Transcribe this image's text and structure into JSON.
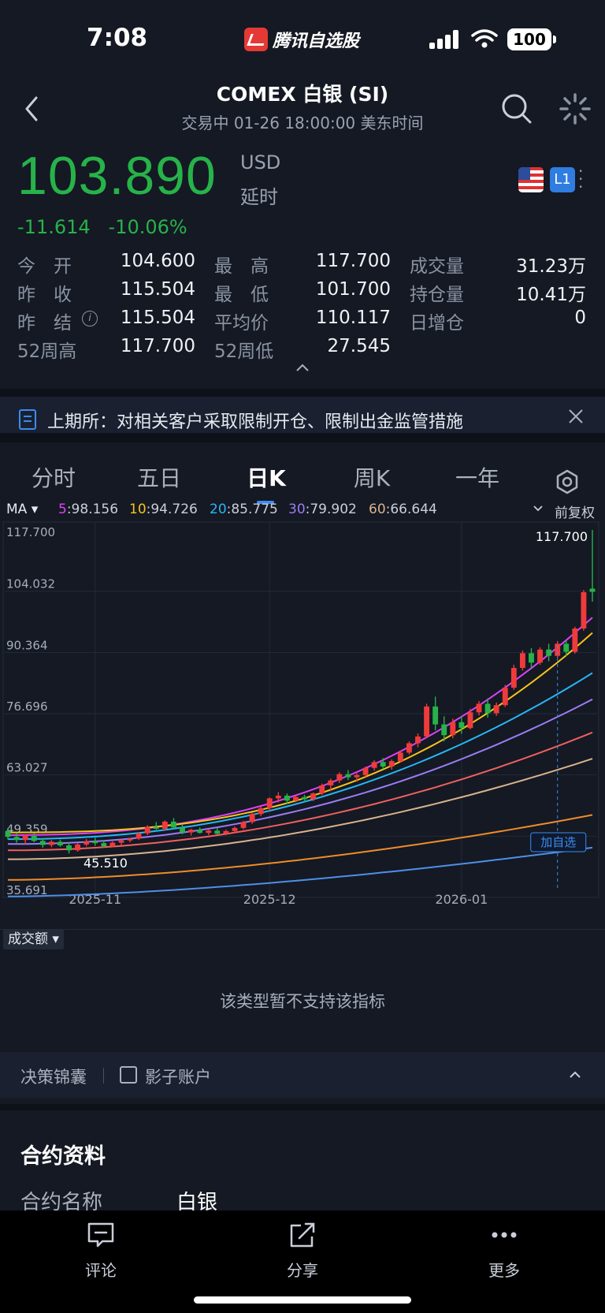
{
  "status_bar": {
    "time": "7:08",
    "app_name": "腾讯自选股",
    "battery": "100"
  },
  "header": {
    "title": "COMEX 白银 (SI)",
    "subtitle": "交易中   01-26 18:00:00 美东时间"
  },
  "quote": {
    "price": "103.890",
    "currency": "USD",
    "delay_label": "延时",
    "change": "-11.614",
    "change_pct": "-10.06%",
    "market_badge": "L1"
  },
  "stats": [
    {
      "label": "今　开",
      "value": "104.600",
      "tone": "down"
    },
    {
      "label": "最　高",
      "value": "117.700",
      "tone": "up"
    },
    {
      "label": "成交量",
      "value": "31.23万",
      "tone": ""
    },
    {
      "label": "昨　收",
      "value": "115.504",
      "tone": ""
    },
    {
      "label": "最　低",
      "value": "101.700",
      "tone": "down"
    },
    {
      "label": "持仓量",
      "value": "10.41万",
      "tone": ""
    },
    {
      "label": "昨　结",
      "value": "115.504",
      "tone": ""
    },
    {
      "label": "平均价",
      "value": "110.117",
      "tone": ""
    },
    {
      "label": "日增仓",
      "value": "0",
      "tone": ""
    },
    {
      "label": "52周高",
      "value": "117.700",
      "tone": ""
    },
    {
      "label": "52周低",
      "value": "27.545",
      "tone": ""
    }
  ],
  "notice": {
    "text": "上期所：对相关客户采取限制开仓、限制出金监管措施"
  },
  "tabs": [
    "分时",
    "五日",
    "日K",
    "周K",
    "一年"
  ],
  "active_tab": "日K",
  "ma_bar": {
    "selector": "MA",
    "items": [
      {
        "label": "5",
        "value": ":98.156",
        "color": "#e040fb"
      },
      {
        "label": "10",
        "value": ":94.726",
        "color": "#f5c518"
      },
      {
        "label": "20",
        "value": ":85.775",
        "color": "#29b6f6"
      },
      {
        "label": "30",
        "value": ":79.902",
        "color": "#9c7cf4"
      },
      {
        "label": "60",
        "value": ":66.644",
        "color": "#d9b38c"
      }
    ],
    "adjust_label": "前复权"
  },
  "chart_data": {
    "type": "candlestick",
    "y_ticks": [
      "117.700",
      "104.032",
      "90.364",
      "76.696",
      "63.027",
      "49.359",
      "35.691"
    ],
    "ylim": [
      35.691,
      117.7
    ],
    "x_ticks": [
      {
        "label": "2025-11",
        "index": 10
      },
      {
        "label": "2025-12",
        "index": 30
      },
      {
        "label": "2026-01",
        "index": 52
      }
    ],
    "max_label": "117.700",
    "min_label": "45.510",
    "add_watch_label": "加自选",
    "candles": [
      [
        50.5,
        51.2,
        48.6,
        49.2
      ],
      [
        49.2,
        50.1,
        47.9,
        48.5
      ],
      [
        48.5,
        49.8,
        47.5,
        49.4
      ],
      [
        49.4,
        50.0,
        48.0,
        48.3
      ],
      [
        48.3,
        48.9,
        46.8,
        47.4
      ],
      [
        47.4,
        48.5,
        46.9,
        48.1
      ],
      [
        48.1,
        48.6,
        47.0,
        47.3
      ],
      [
        47.3,
        48.0,
        45.5,
        46.2
      ],
      [
        46.2,
        47.8,
        45.9,
        47.5
      ],
      [
        47.5,
        48.7,
        47.1,
        48.2
      ],
      [
        48.2,
        49.0,
        47.2,
        47.8
      ],
      [
        47.8,
        48.4,
        46.8,
        47.1
      ],
      [
        47.1,
        48.2,
        46.9,
        47.9
      ],
      [
        47.9,
        48.6,
        47.3,
        48.4
      ],
      [
        48.4,
        49.0,
        48.0,
        48.8
      ],
      [
        48.8,
        50.2,
        48.5,
        50.0
      ],
      [
        50.0,
        51.8,
        49.6,
        51.4
      ],
      [
        51.4,
        52.5,
        50.8,
        51.0
      ],
      [
        51.0,
        52.9,
        50.6,
        52.6
      ],
      [
        52.6,
        53.4,
        50.9,
        51.3
      ],
      [
        51.3,
        51.9,
        49.8,
        50.2
      ],
      [
        50.2,
        51.0,
        49.5,
        50.8
      ],
      [
        50.8,
        51.3,
        49.9,
        50.1
      ],
      [
        50.1,
        50.9,
        49.6,
        50.6
      ],
      [
        50.6,
        51.2,
        49.8,
        49.9
      ],
      [
        49.9,
        50.8,
        49.6,
        50.5
      ],
      [
        50.5,
        51.5,
        50.0,
        51.2
      ],
      [
        51.2,
        52.8,
        50.9,
        52.5
      ],
      [
        52.5,
        54.6,
        52.1,
        54.3
      ],
      [
        54.3,
        56.0,
        53.8,
        55.6
      ],
      [
        55.6,
        58.0,
        55.0,
        57.8
      ],
      [
        57.8,
        59.2,
        56.9,
        58.4
      ],
      [
        58.4,
        58.9,
        56.6,
        57.3
      ],
      [
        57.3,
        58.5,
        56.9,
        58.1
      ],
      [
        58.1,
        58.6,
        57.0,
        57.6
      ],
      [
        57.6,
        59.1,
        57.2,
        58.9
      ],
      [
        58.9,
        61.1,
        58.5,
        60.7
      ],
      [
        60.7,
        62.2,
        59.4,
        61.8
      ],
      [
        61.8,
        63.6,
        61.2,
        63.2
      ],
      [
        63.2,
        64.1,
        61.9,
        62.5
      ],
      [
        62.5,
        63.4,
        61.5,
        63.0
      ],
      [
        63.0,
        64.9,
        62.6,
        64.6
      ],
      [
        64.6,
        66.3,
        64.0,
        65.9
      ],
      [
        65.9,
        66.8,
        64.3,
        64.9
      ],
      [
        64.9,
        66.5,
        64.2,
        66.1
      ],
      [
        66.1,
        68.5,
        65.8,
        68.0
      ],
      [
        68.0,
        70.5,
        67.6,
        70.1
      ],
      [
        70.1,
        72.3,
        69.2,
        71.6
      ],
      [
        71.6,
        78.9,
        71.3,
        78.3
      ],
      [
        78.3,
        80.5,
        73.0,
        74.3
      ],
      [
        74.3,
        76.1,
        70.5,
        71.9
      ],
      [
        71.9,
        75.6,
        71.2,
        74.8
      ],
      [
        74.8,
        76.2,
        72.2,
        73.5
      ],
      [
        73.5,
        77.8,
        73.2,
        77.0
      ],
      [
        77.0,
        79.5,
        76.3,
        78.9
      ],
      [
        78.9,
        80.1,
        75.8,
        76.8
      ],
      [
        76.8,
        79.2,
        76.2,
        78.6
      ],
      [
        78.6,
        83.1,
        78.2,
        82.5
      ],
      [
        82.5,
        87.6,
        82.0,
        86.9
      ],
      [
        86.9,
        90.8,
        86.3,
        90.2
      ],
      [
        90.2,
        91.3,
        86.8,
        88.1
      ],
      [
        88.1,
        91.5,
        87.6,
        91.0
      ],
      [
        91.0,
        92.3,
        88.4,
        89.6
      ],
      [
        89.6,
        92.9,
        89.2,
        92.3
      ],
      [
        92.3,
        93.1,
        89.6,
        90.5
      ],
      [
        90.5,
        96.1,
        90.1,
        95.7
      ],
      [
        95.7,
        104.3,
        95.2,
        103.8
      ],
      [
        104.6,
        117.7,
        101.7,
        103.89
      ]
    ],
    "ma_series": [
      {
        "name": "5",
        "color": "#e040fb",
        "start": 49.6,
        "end": 98.156,
        "power": 2.4
      },
      {
        "name": "10",
        "color": "#f5c518",
        "start": 50.2,
        "end": 94.726,
        "power": 2.6
      },
      {
        "name": "20",
        "color": "#29b6f6",
        "start": 48.7,
        "end": 85.775,
        "power": 2.2
      },
      {
        "name": "30",
        "color": "#9c7cf4",
        "start": 47.6,
        "end": 79.902,
        "power": 2.1
      },
      {
        "name": "60",
        "color": "#d9b38c",
        "start": 44.2,
        "end": 66.644,
        "power": 1.9
      },
      {
        "name": "",
        "color": "#f06060",
        "start": 46.2,
        "end": 72.5,
        "power": 2.0
      },
      {
        "name": "",
        "color": "#f08c2a",
        "start": 39.6,
        "end": 54.1,
        "power": 1.7
      },
      {
        "name": "",
        "color": "#4f8fe8",
        "start": 35.9,
        "end": 46.8,
        "power": 1.6
      }
    ]
  },
  "volume_panel": {
    "selector": "成交额",
    "message": "该类型暂不支持该指标"
  },
  "tools_bar": {
    "item1": "决策锦囊",
    "item2": "影子账户"
  },
  "contract": {
    "title": "合约资料",
    "name_label": "合约名称",
    "name_value": "白银"
  },
  "bottom_bar": [
    {
      "label": "评论",
      "icon": "comment-icon"
    },
    {
      "label": "分享",
      "icon": "share-icon"
    },
    {
      "label": "更多",
      "icon": "more-icon"
    }
  ],
  "colors": {
    "up": "#ef3b3b",
    "down": "#27b24a",
    "accent": "#3b8cf0",
    "background": "#141923"
  }
}
